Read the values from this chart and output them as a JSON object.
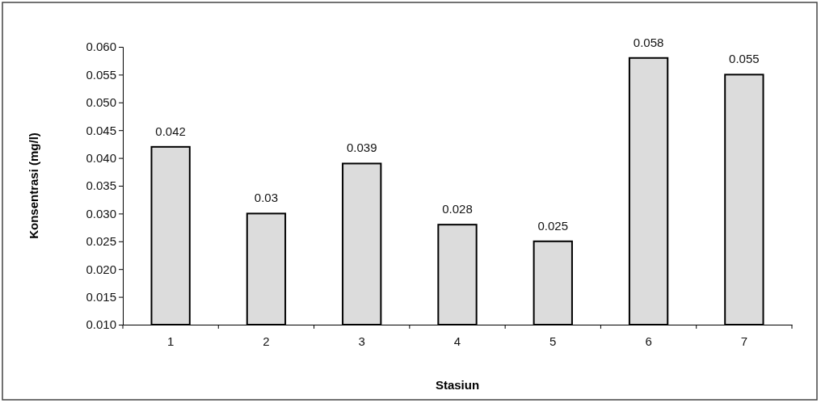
{
  "chart_data": {
    "type": "bar",
    "xlabel": "Stasiun",
    "ylabel": "Konsentrasi (mg/l)",
    "categories": [
      "1",
      "2",
      "3",
      "4",
      "5",
      "6",
      "7"
    ],
    "values": [
      0.042,
      0.03,
      0.039,
      0.028,
      0.025,
      0.058,
      0.055
    ],
    "color": "#dcdcdc",
    "data_labels": true,
    "grid": false,
    "ylim": [
      0.01,
      0.06
    ],
    "yticks": [
      {
        "value": 0.01,
        "label": "0.010"
      },
      {
        "value": 0.015,
        "label": "0.015"
      },
      {
        "value": 0.02,
        "label": "0.020"
      },
      {
        "value": 0.025,
        "label": "0.025"
      },
      {
        "value": 0.03,
        "label": "0.030"
      },
      {
        "value": 0.035,
        "label": "0.035"
      },
      {
        "value": 0.04,
        "label": "0.040"
      },
      {
        "value": 0.045,
        "label": "0.045"
      },
      {
        "value": 0.05,
        "label": "0.050"
      },
      {
        "value": 0.055,
        "label": "0.055"
      },
      {
        "value": 0.06,
        "label": "0.060"
      }
    ]
  }
}
